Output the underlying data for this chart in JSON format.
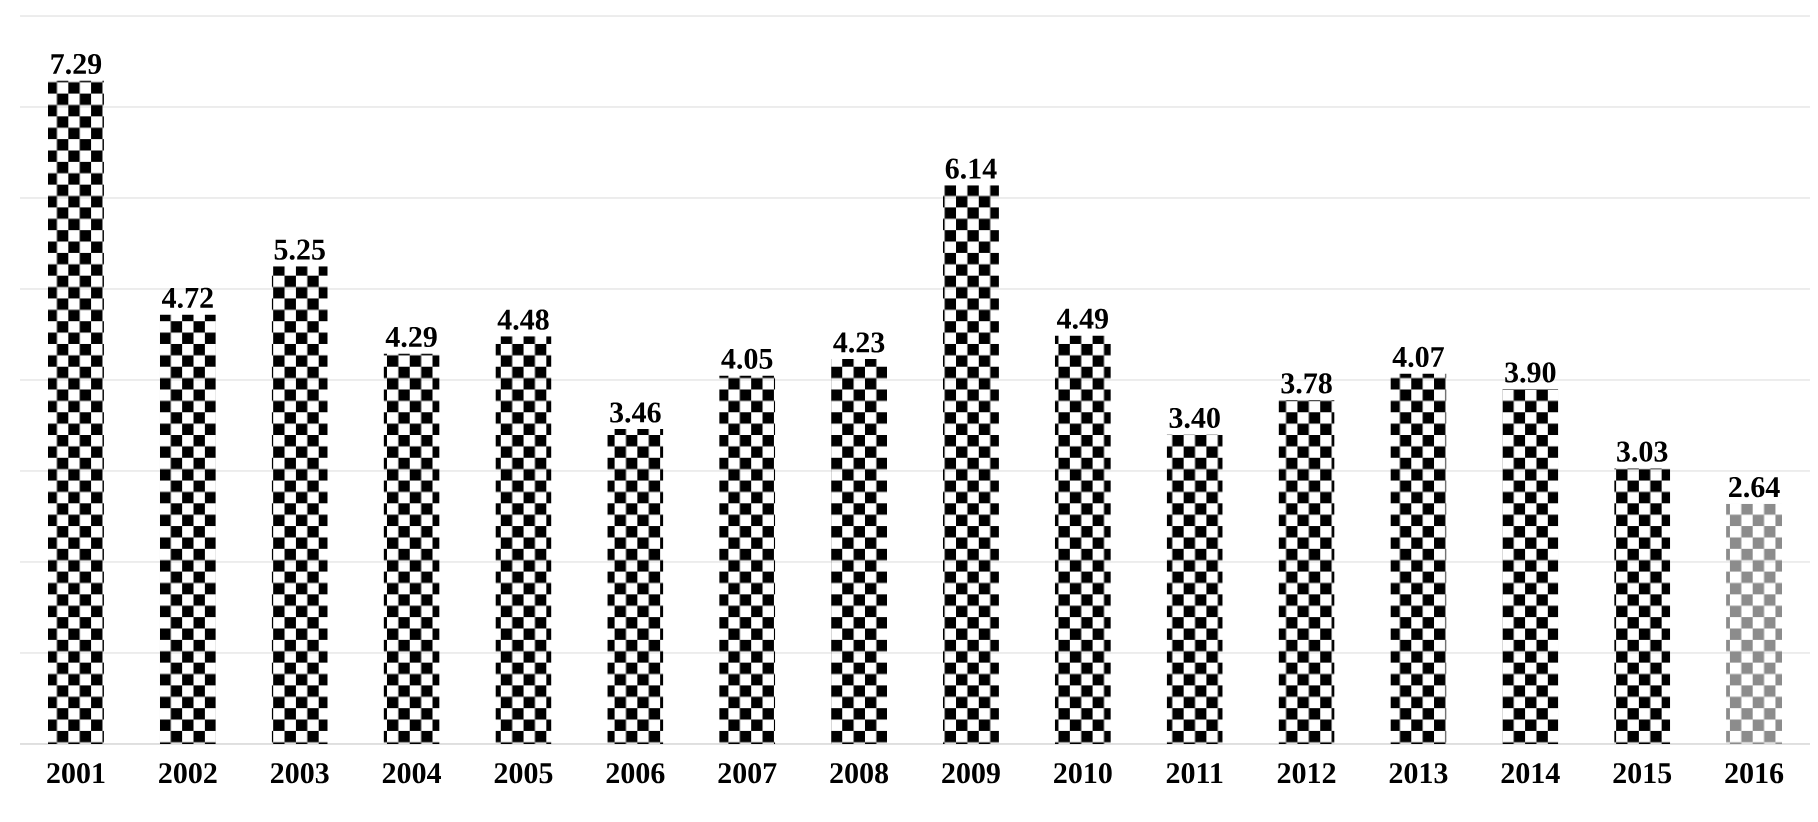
{
  "chart_data": {
    "type": "bar",
    "categories": [
      "2001",
      "2002",
      "2003",
      "2004",
      "2005",
      "2006",
      "2007",
      "2008",
      "2009",
      "2010",
      "2011",
      "2012",
      "2013",
      "2014",
      "2015",
      "2016"
    ],
    "values": [
      7.29,
      4.72,
      5.25,
      4.29,
      4.48,
      3.46,
      4.05,
      4.23,
      6.14,
      4.49,
      3.4,
      3.78,
      4.07,
      3.9,
      3.03,
      2.64
    ],
    "value_labels": [
      "7.29",
      "4.72",
      "5.25",
      "4.29",
      "4.48",
      "3.46",
      "4.05",
      "4.23",
      "6.14",
      "4.49",
      "3.40",
      "3.78",
      "4.07",
      "3.90",
      "3.03",
      "2.64"
    ],
    "colors": [
      "#000000",
      "#000000",
      "#000000",
      "#000000",
      "#000000",
      "#000000",
      "#000000",
      "#000000",
      "#000000",
      "#000000",
      "#000000",
      "#000000",
      "#000000",
      "#000000",
      "#000000",
      "#8c8c8c"
    ],
    "ylim": [
      0,
      8
    ],
    "yticks": [
      {
        "value": 0,
        "label": null
      },
      {
        "value": 1,
        "label": null
      },
      {
        "value": 2,
        "label": null
      },
      {
        "value": 3,
        "label": null
      },
      {
        "value": 4,
        "label": null
      },
      {
        "value": 5,
        "label": null
      },
      {
        "value": 6,
        "label": null
      },
      {
        "value": 7,
        "label": null
      },
      {
        "value": 8,
        "label": null
      }
    ],
    "tick_labels": "x",
    "grid": "y"
  }
}
